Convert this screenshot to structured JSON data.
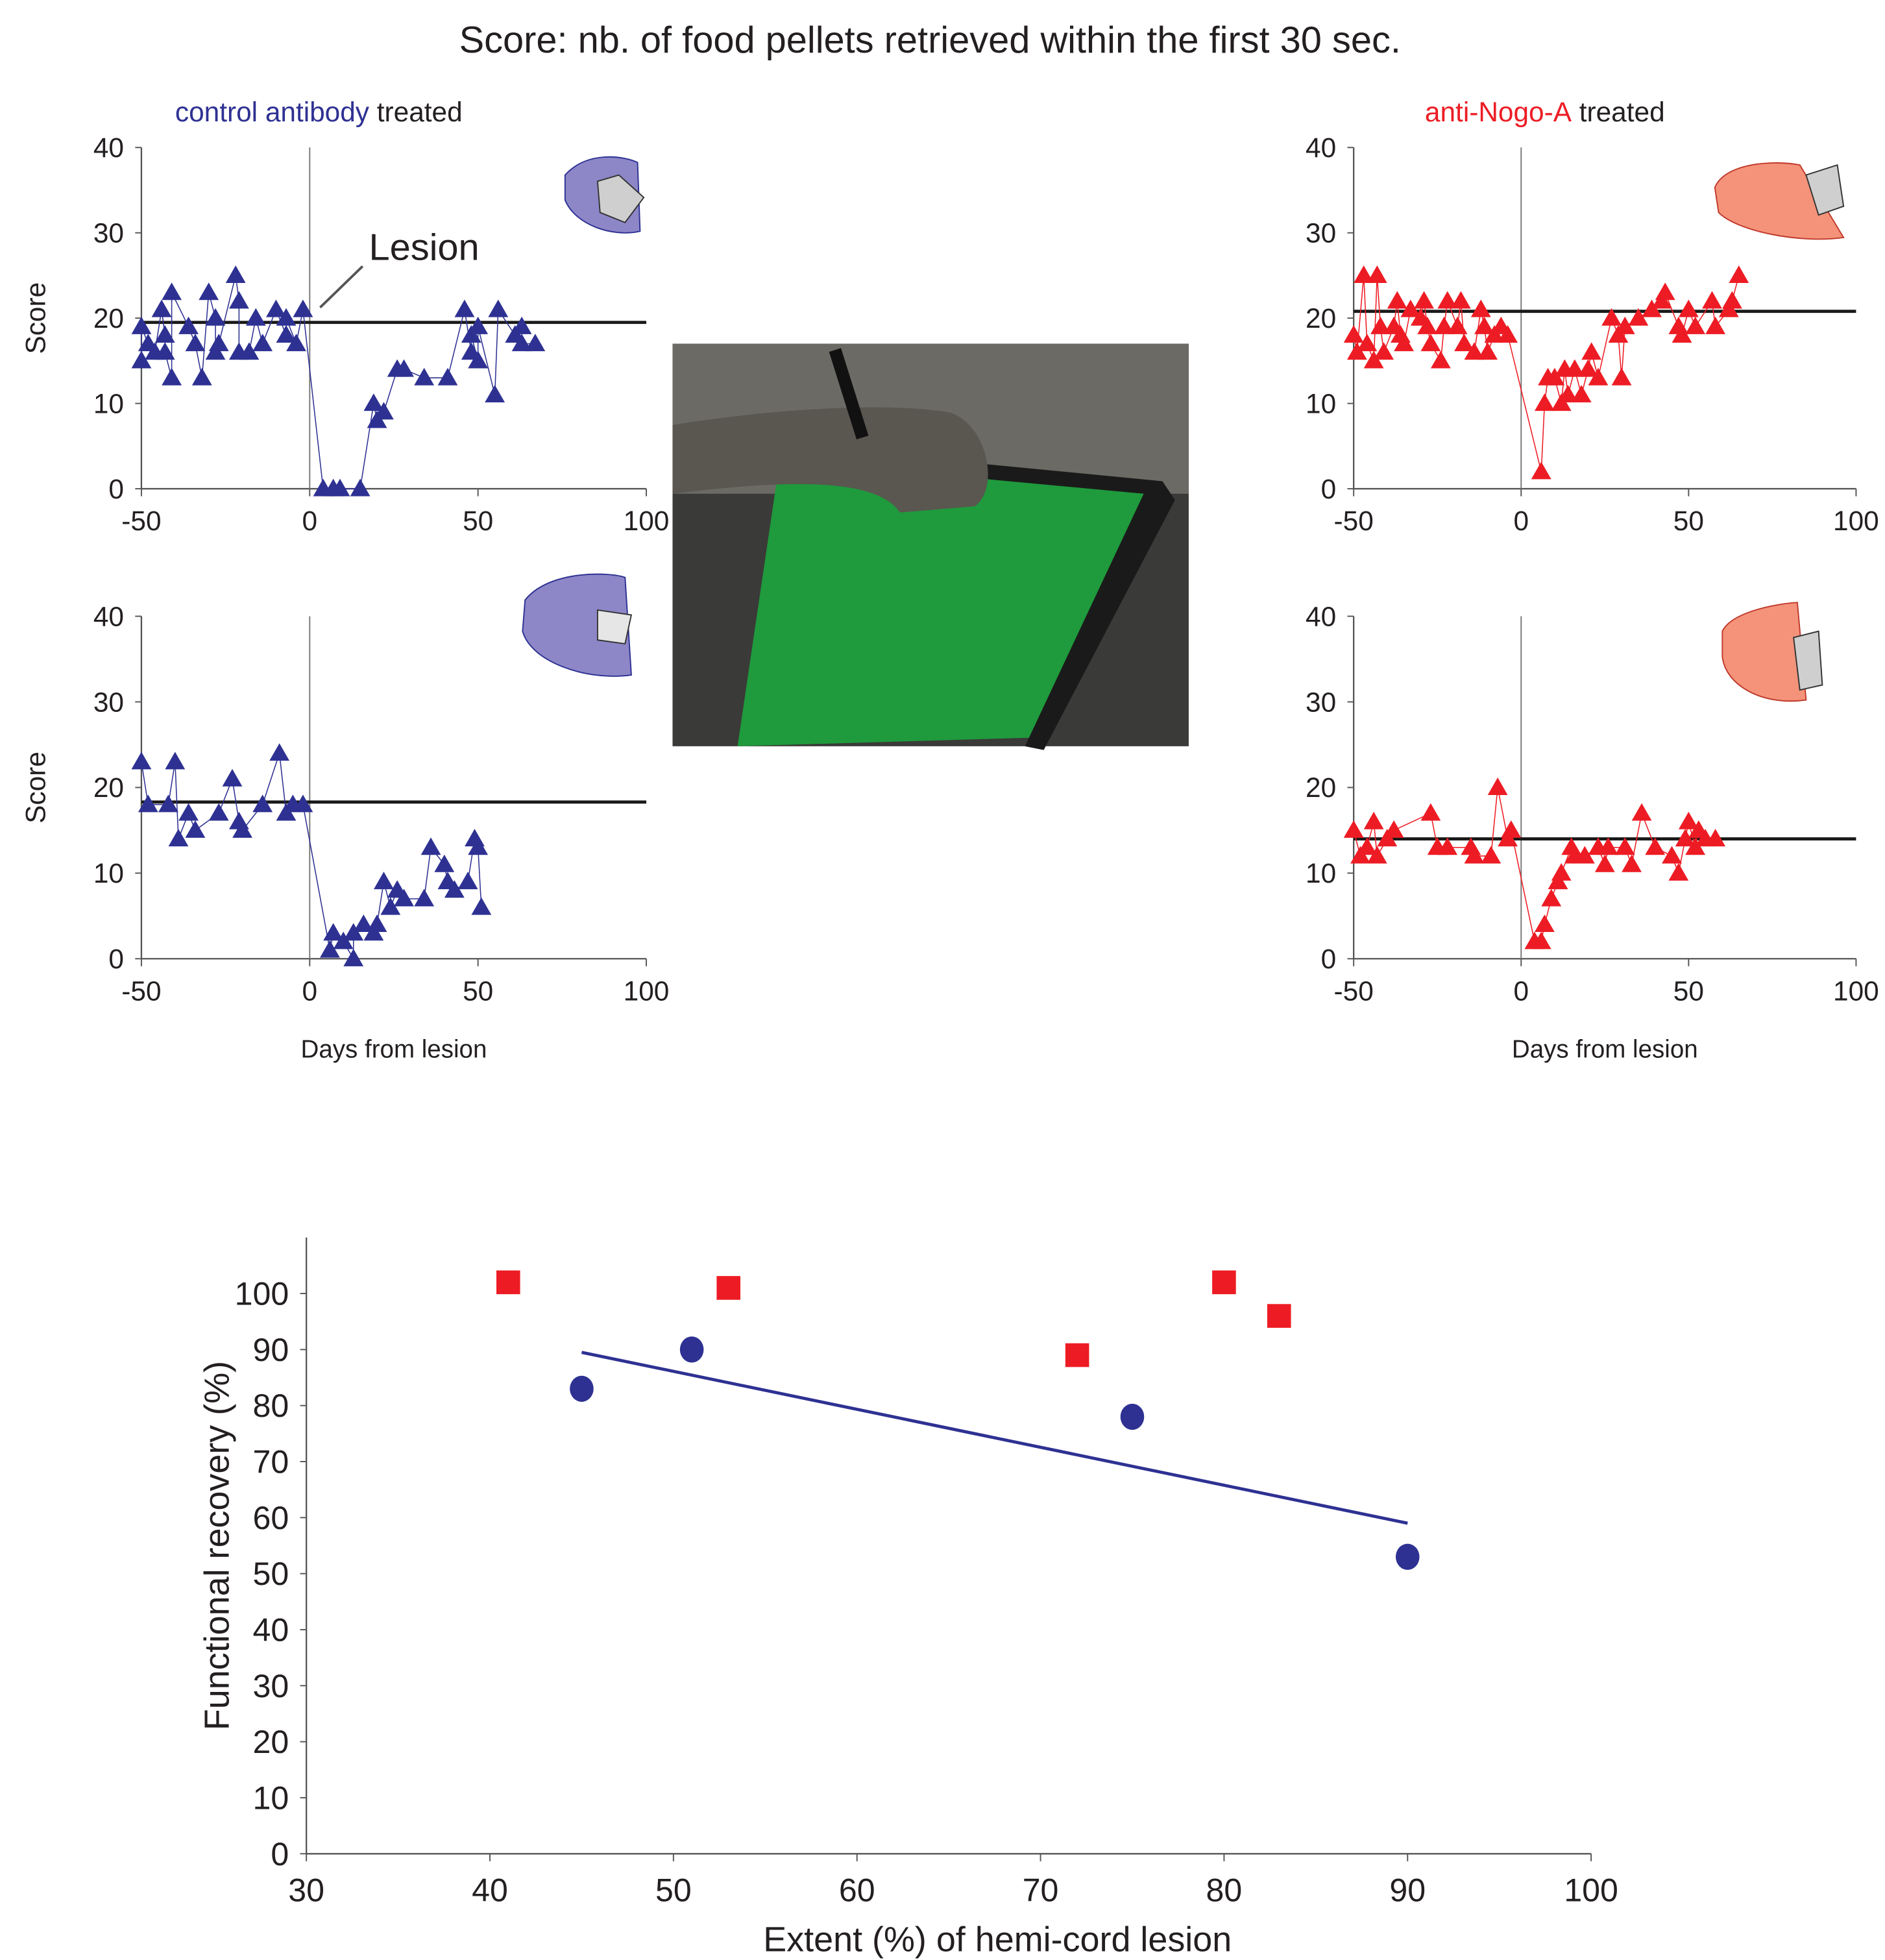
{
  "title": "Score: nb. of food pellets retrieved within the first 30 sec.",
  "panel_labels": [
    {
      "highlight": "control antibody",
      "color": "#2e3192",
      "text": "treated"
    },
    {
      "highlight": "anti-Nogo-A",
      "color": "#ed1c24",
      "text": "treated"
    }
  ],
  "annotation": "Lesion",
  "chart_data": [
    {
      "type": "line",
      "ylabel": "Score",
      "marker": "triangle",
      "xlim": [
        -50,
        100
      ],
      "xticks": [
        -50,
        0,
        50,
        100
      ],
      "ylim": [
        0,
        40
      ],
      "yticks": [
        0,
        10,
        20,
        30,
        40
      ],
      "reference_line": 19.5,
      "x": [
        -50,
        -50,
        -48,
        -46,
        -44,
        -43,
        -43,
        -41,
        -41,
        -36,
        -34,
        -32,
        -30,
        -28,
        -28,
        -27,
        -22,
        -21,
        -21,
        -18,
        -16,
        -14,
        -10,
        -7,
        -7,
        -4,
        -2,
        4,
        7,
        9,
        15,
        19,
        20,
        22,
        26,
        28,
        34,
        41,
        46,
        48,
        48,
        50,
        50,
        55,
        56,
        61,
        63,
        63,
        67
      ],
      "series": [
        {
          "color": "#2e3192",
          "values": [
            15,
            19,
            17,
            16,
            21,
            18,
            16,
            13,
            23,
            19,
            17,
            13,
            23,
            20,
            16,
            17,
            25,
            22,
            16,
            16,
            20,
            17,
            21,
            18,
            20,
            17,
            21,
            0,
            0,
            0,
            0,
            10,
            8,
            9,
            14,
            14,
            13,
            13,
            21,
            16,
            18,
            15,
            19,
            11,
            21,
            18,
            19,
            17,
            17
          ]
        }
      ]
    },
    {
      "type": "line",
      "marker": "triangle",
      "xlim": [
        -50,
        100
      ],
      "xticks": [
        -50,
        0,
        50,
        100
      ],
      "ylim": [
        0,
        40
      ],
      "yticks": [
        0,
        10,
        20,
        30,
        40
      ],
      "reference_line": 20.8,
      "x": [
        -50,
        -49,
        -47,
        -46,
        -44,
        -43,
        -42,
        -41,
        -38,
        -37,
        -36,
        -35,
        -33,
        -30,
        -29,
        -28,
        -27,
        -24,
        -23,
        -22,
        -19,
        -18,
        -17,
        -14,
        -12,
        -11,
        -10,
        -8,
        -6,
        -4,
        6,
        7,
        8,
        10,
        12,
        13,
        14,
        16,
        18,
        20,
        21,
        23,
        27,
        29,
        30,
        31,
        35,
        39,
        42,
        43,
        47,
        48,
        50,
        52,
        57,
        58,
        62,
        63,
        65
      ],
      "series": [
        {
          "color": "#ed1c24",
          "values": [
            18,
            16,
            25,
            17,
            15,
            25,
            19,
            16,
            19,
            22,
            18,
            17,
            21,
            20,
            22,
            19,
            17,
            15,
            19,
            22,
            19,
            22,
            17,
            16,
            21,
            19,
            16,
            18,
            19,
            18,
            2,
            10,
            13,
            13,
            10,
            14,
            11,
            14,
            11,
            14,
            16,
            13,
            20,
            18,
            13,
            19,
            20,
            21,
            22,
            23,
            19,
            18,
            21,
            19,
            22,
            19,
            21,
            22,
            25
          ]
        }
      ]
    },
    {
      "type": "line",
      "ylabel": "Score",
      "xlabel": "Days from lesion",
      "marker": "triangle",
      "xlim": [
        -50,
        100
      ],
      "xticks": [
        -50,
        0,
        50,
        100
      ],
      "ylim": [
        0,
        40
      ],
      "yticks": [
        0,
        10,
        20,
        30,
        40
      ],
      "reference_line": 18.3,
      "x": [
        -50,
        -48,
        -42,
        -40,
        -39,
        -36,
        -34,
        -27,
        -23,
        -21,
        -20,
        -14,
        -9,
        -7,
        -5,
        -2,
        6,
        7,
        10,
        13,
        13,
        16,
        19,
        20,
        22,
        24,
        26,
        28,
        34,
        36,
        40,
        41,
        43,
        47,
        49,
        50,
        51
      ],
      "series": [
        {
          "color": "#2e3192",
          "values": [
            23,
            18,
            18,
            23,
            14,
            17,
            15,
            17,
            21,
            16,
            15,
            18,
            24,
            17,
            18,
            18,
            1,
            3,
            2,
            0,
            3,
            4,
            3,
            4,
            9,
            6,
            8,
            7,
            7,
            13,
            11,
            9,
            8,
            9,
            14,
            13,
            6
          ]
        }
      ]
    },
    {
      "type": "line",
      "xlabel": "Days from lesion",
      "marker": "triangle",
      "xlim": [
        -50,
        100
      ],
      "xticks": [
        -50,
        0,
        50,
        100
      ],
      "ylim": [
        0,
        40
      ],
      "yticks": [
        0,
        10,
        20,
        30,
        40
      ],
      "reference_line": 14,
      "x": [
        -50,
        -48,
        -46,
        -44,
        -43,
        -40,
        -38,
        -27,
        -25,
        -22,
        -15,
        -14,
        -9,
        -7,
        -4,
        -3,
        4,
        6,
        7,
        9,
        11,
        12,
        15,
        16,
        19,
        23,
        25,
        26,
        31,
        33,
        36,
        40,
        45,
        47,
        49,
        50,
        52,
        53,
        55,
        58
      ],
      "series": [
        {
          "color": "#ed1c24",
          "values": [
            15,
            12,
            13,
            16,
            12,
            14,
            15,
            17,
            13,
            13,
            13,
            12,
            12,
            20,
            14,
            15,
            2,
            2,
            4,
            7,
            9,
            10,
            13,
            12,
            12,
            13,
            11,
            13,
            13,
            11,
            17,
            13,
            12,
            10,
            14,
            16,
            13,
            15,
            14,
            14
          ]
        }
      ]
    },
    {
      "type": "scatter",
      "xlabel": "Extent (%) of hemi-cord lesion",
      "ylabel": "Functional recovery (%)",
      "xlim": [
        30,
        100
      ],
      "xticks": [
        30,
        40,
        50,
        60,
        70,
        80,
        90,
        100
      ],
      "ylim": [
        0,
        110
      ],
      "yticks": [
        0,
        10,
        20,
        30,
        40,
        50,
        60,
        70,
        80,
        90,
        100
      ],
      "series": [
        {
          "color": "#2e3192",
          "marker": "circle",
          "x": [
            45,
            51,
            75,
            90
          ],
          "values": [
            83,
            90,
            78,
            53
          ]
        },
        {
          "color": "#ed1c24",
          "marker": "square",
          "x": [
            41,
            53,
            72,
            80,
            83
          ],
          "values": [
            102,
            101,
            89,
            102,
            96
          ]
        }
      ],
      "fit": {
        "color": "#2e3192",
        "x": [
          45,
          90
        ],
        "values": [
          89.5,
          59
        ]
      }
    }
  ]
}
